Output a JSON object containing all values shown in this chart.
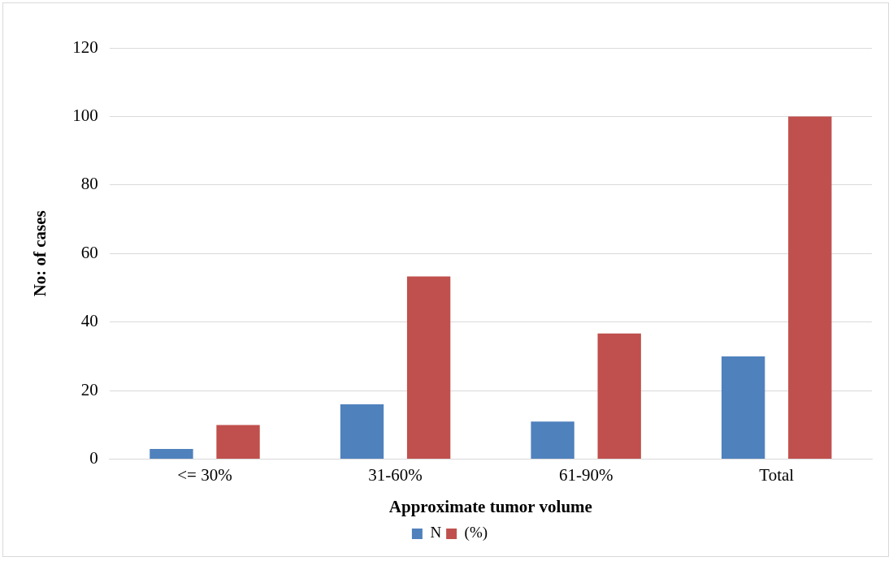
{
  "chart_data": {
    "type": "bar",
    "xlabel": "Approximate tumor volume",
    "ylabel": "No: of cases",
    "categories": [
      "<= 30%",
      "31-60%",
      "61-90%",
      "Total"
    ],
    "series": [
      {
        "name": "N",
        "color": "#4f81bd",
        "values": [
          3,
          16,
          11,
          30
        ]
      },
      {
        "name": "(%)",
        "color": "#c0504d",
        "values": [
          10,
          53.3,
          36.7,
          100
        ]
      }
    ],
    "ylim": [
      0,
      120
    ],
    "yticks": [
      0,
      20,
      40,
      60,
      80,
      100,
      120
    ],
    "grid": "y",
    "legend": "bottom"
  }
}
